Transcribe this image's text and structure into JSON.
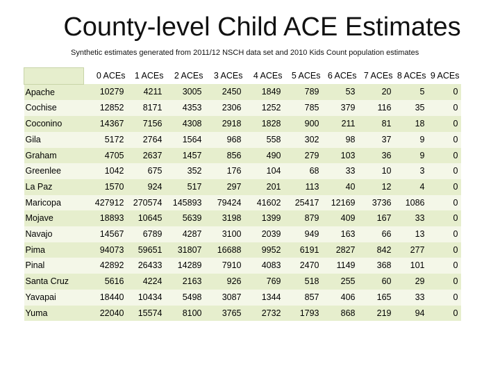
{
  "title": "County-level Child ACE Estimates",
  "subtitle": "Synthetic estimates  generated from  2011/12 NSCH data set and 2010 Kids Count population estimates",
  "table": {
    "columns": [
      "0 ACEs",
      "1 ACEs",
      "2 ACEs",
      "3 ACEs",
      "4 ACEs",
      "5 ACEs",
      "6 ACEs",
      "7 ACEs",
      "8 ACEs",
      "9 ACEs"
    ],
    "rows": [
      {
        "county": "Apache",
        "values": [
          "10279",
          "4211",
          "3005",
          "2450",
          "1849",
          "789",
          "53",
          "20",
          "5",
          "0"
        ]
      },
      {
        "county": "Cochise",
        "values": [
          "12852",
          "8171",
          "4353",
          "2306",
          "1252",
          "785",
          "379",
          "116",
          "35",
          "0"
        ]
      },
      {
        "county": "Coconino",
        "values": [
          "14367",
          "7156",
          "4308",
          "2918",
          "1828",
          "900",
          "211",
          "81",
          "18",
          "0"
        ]
      },
      {
        "county": "Gila",
        "values": [
          "5172",
          "2764",
          "1564",
          "968",
          "558",
          "302",
          "98",
          "37",
          "9",
          "0"
        ]
      },
      {
        "county": "Graham",
        "values": [
          "4705",
          "2637",
          "1457",
          "856",
          "490",
          "279",
          "103",
          "36",
          "9",
          "0"
        ]
      },
      {
        "county": "Greenlee",
        "values": [
          "1042",
          "675",
          "352",
          "176",
          "104",
          "68",
          "33",
          "10",
          "3",
          "0"
        ]
      },
      {
        "county": "La Paz",
        "values": [
          "1570",
          "924",
          "517",
          "297",
          "201",
          "113",
          "40",
          "12",
          "4",
          "0"
        ]
      },
      {
        "county": "Maricopa",
        "values": [
          "427912",
          "270574",
          "145893",
          "79424",
          "41602",
          "25417",
          "12169",
          "3736",
          "1086",
          "0"
        ]
      },
      {
        "county": "Mojave",
        "values": [
          "18893",
          "10645",
          "5639",
          "3198",
          "1399",
          "879",
          "409",
          "167",
          "33",
          "0"
        ]
      },
      {
        "county": "Navajo",
        "values": [
          "14567",
          "6789",
          "4287",
          "3100",
          "2039",
          "949",
          "163",
          "66",
          "13",
          "0"
        ]
      },
      {
        "county": "Pima",
        "values": [
          "94073",
          "59651",
          "31807",
          "16688",
          "9952",
          "6191",
          "2827",
          "842",
          "277",
          "0"
        ]
      },
      {
        "county": "Pinal",
        "values": [
          "42892",
          "26433",
          "14289",
          "7910",
          "4083",
          "2470",
          "1149",
          "368",
          "101",
          "0"
        ]
      },
      {
        "county": "Santa Cruz",
        "values": [
          "5616",
          "4224",
          "2163",
          "926",
          "769",
          "518",
          "255",
          "60",
          "29",
          "0"
        ]
      },
      {
        "county": "Yavapai",
        "values": [
          "18440",
          "10434",
          "5498",
          "3087",
          "1344",
          "857",
          "406",
          "165",
          "33",
          "0"
        ]
      },
      {
        "county": "Yuma",
        "values": [
          "22040",
          "15574",
          "8100",
          "3765",
          "2732",
          "1793",
          "868",
          "219",
          "94",
          "0"
        ]
      }
    ]
  },
  "colors": {
    "row_odd": "#e6eecd",
    "row_even": "#f4f7e8"
  }
}
